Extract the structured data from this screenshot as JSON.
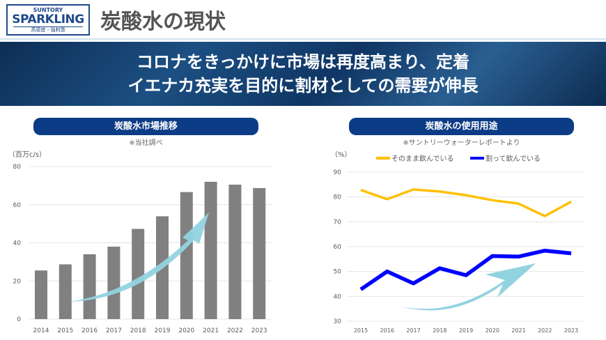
{
  "logo": {
    "brand_top": "SUNTORY",
    "brand": "SPARKLING",
    "tagline": "高密度・強刺激"
  },
  "title": "炭酸水の現状",
  "banner": {
    "line1": "コロナをきっかけに市場は再度高まり、定着",
    "line2": "イエナカ充実を目的に割材としての需要が伸長"
  },
  "colors": {
    "bar": "#808080",
    "line_straight": "#FFC000",
    "line_mixer": "#0000FF",
    "arrow": "#92D3E0",
    "pill": "#0D3C86"
  },
  "chart_data": [
    {
      "type": "bar",
      "title": "炭酸水市場推移",
      "note": "※当社調べ",
      "ylabel": "（百万c/s）",
      "ylim": [
        0,
        80
      ],
      "yticks": [
        0,
        20,
        40,
        60,
        80
      ],
      "grid": true,
      "categories": [
        "2014",
        "2015",
        "2016",
        "2017",
        "2018",
        "2019",
        "2020",
        "2021",
        "2022",
        "2023"
      ],
      "values": [
        25.5,
        28.7,
        34,
        38,
        47.3,
        53.9,
        66.6,
        72,
        70.5,
        68.7
      ],
      "annotation": "upward-arrow"
    },
    {
      "type": "line",
      "title": "炭酸水の使用用途",
      "note": "※サントリーウォーターレポートより",
      "ylabel": "（%）",
      "ylim": [
        30,
        90
      ],
      "yticks": [
        30,
        40,
        50,
        60,
        70,
        80,
        90
      ],
      "grid": true,
      "legend": "top",
      "categories": [
        "2015",
        "2016",
        "2017",
        "2018",
        "2019",
        "2020",
        "2021",
        "2022",
        "2023"
      ],
      "series": [
        {
          "name": "そのまま飲んでいる",
          "values": [
            82.8,
            79.1,
            83,
            82.2,
            80.7,
            78.7,
            77.3,
            72.3,
            78.1
          ]
        },
        {
          "name": "割って飲んでいる",
          "values": [
            42.8,
            50,
            45.2,
            51.3,
            48.5,
            56.2,
            56,
            58.4,
            57.3
          ]
        }
      ],
      "annotation": "upward-arrow"
    }
  ]
}
